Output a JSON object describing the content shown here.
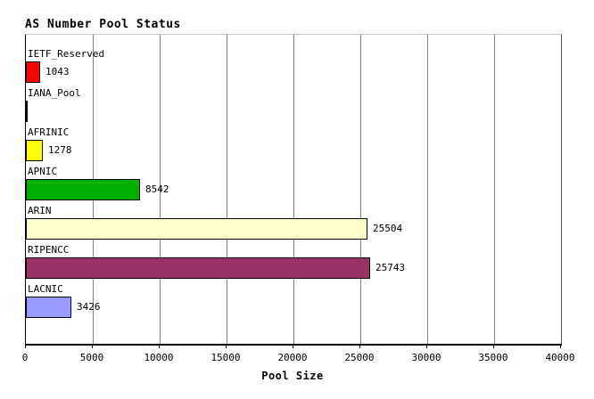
{
  "title": "AS Number Pool Status",
  "chart_data": {
    "type": "bar",
    "orientation": "horizontal",
    "title": "AS Number Pool Status",
    "xlabel": "Pool Size",
    "ylabel": "",
    "xlim": [
      0,
      40000
    ],
    "x_ticks": [
      0,
      5000,
      10000,
      15000,
      20000,
      25000,
      30000,
      35000,
      40000
    ],
    "grid": true,
    "legend": false,
    "categories": [
      "IETF_Reserved",
      "IANA_Pool",
      "AFRINIC",
      "APNIC",
      "ARIN",
      "RIPENCC",
      "LACNIC"
    ],
    "values": [
      1043,
      0,
      1278,
      8542,
      25504,
      25743,
      3426
    ],
    "value_labels": [
      "1043",
      "",
      "1278",
      "8542",
      "25504",
      "25743",
      "3426"
    ],
    "bar_colors": [
      "#ff0000",
      "#ffffff",
      "#ffff00",
      "#00b000",
      "#ffffcc",
      "#993366",
      "#9999ff"
    ]
  },
  "colors": {
    "background": "#ffffff",
    "text": "#000000",
    "grid": "#808080",
    "axis": "#000000",
    "plot_top_border": "#c8c8c8",
    "bar_border": "#000000"
  }
}
